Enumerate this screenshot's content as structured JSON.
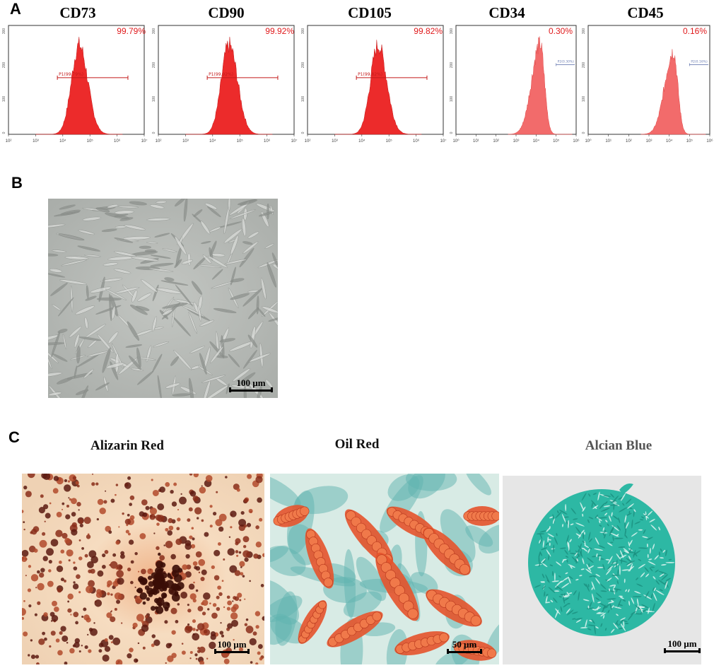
{
  "panels": {
    "a": "A",
    "b": "B",
    "c": "C"
  },
  "flow": [
    {
      "marker": "CD73",
      "percent": "99.79%",
      "gate": "P1(99.79%)",
      "style": "red",
      "peak_log": 4.6
    },
    {
      "marker": "CD90",
      "percent": "99.92%",
      "gate": "P1(99.92%)",
      "style": "red",
      "peak_log": 4.6
    },
    {
      "marker": "CD105",
      "percent": "99.82%",
      "gate": "P1(99.82%)",
      "style": "red",
      "peak_log": 4.6
    },
    {
      "marker": "CD34",
      "percent": "0.30%",
      "gate": "P2(0.30%)",
      "style": "pink",
      "peak_log": 4.2
    },
    {
      "marker": "CD45",
      "percent": "0.16%",
      "gate": "P2(0.16%)",
      "style": "pink",
      "peak_log": 4.2
    }
  ],
  "flow_axis_ticks_red": [
    "10²",
    "10³",
    "10⁴",
    "10⁵",
    "10⁶",
    "10⁷"
  ],
  "flow_axis_ticks_pink": [
    "10⁰",
    "10¹",
    "10²",
    "10³",
    "10⁴",
    "10⁵",
    "10⁶"
  ],
  "flow_y_ticks": [
    "0",
    "100",
    "200",
    "300"
  ],
  "culture": {
    "scale": "100 µm"
  },
  "stains": [
    {
      "title": "Alizarin Red",
      "scale": "100 µm",
      "title_color": "#111111"
    },
    {
      "title": "Oil Red",
      "scale": "50 µm",
      "title_color": "#111111"
    },
    {
      "title": "Alcian Blue",
      "scale": "100 µm",
      "title_color": "#555555"
    }
  ],
  "colors": {
    "hist_red": "#ec2b2b",
    "hist_pink": "#f26b6b",
    "pct_text": "#e0191b",
    "alcian": "#2db8a4"
  }
}
